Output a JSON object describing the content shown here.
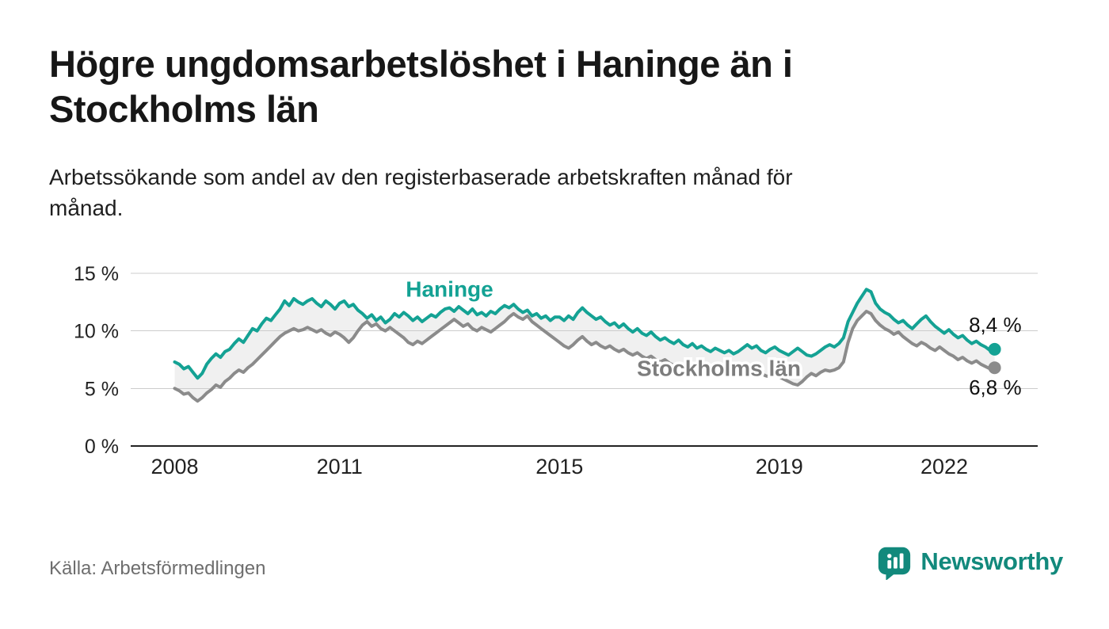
{
  "title": "Högre ungdomsarbetslöshet i Haninge än i\nStockholms län",
  "subtitle": "Arbetssökande som andel av den registerbaserade arbetskraften månad för\nmånad.",
  "source": "Källa: Arbetsförmedlingen",
  "brand": {
    "name": "Newsworthy",
    "color": "#12897C",
    "icon": "bar-chart-speech-bubble-icon"
  },
  "chart_data": {
    "type": "line",
    "title": "Högre ungdomsarbetslöshet i Haninge än i Stockholms län",
    "subtitle": "Arbetssökande som andel av den registerbaserade arbetskraften månad för månad.",
    "unit": "%",
    "frequency": "monthly",
    "start": "2008-01",
    "start_year": 2008,
    "end": "2022-12",
    "grid": true,
    "legend_position": "inline-labels",
    "band_fill": "#F0F0F0",
    "grid_color": "#CCCCCC",
    "axis_color": "#222222",
    "tick_text_color": "#222222",
    "end_label_color": "#111111",
    "ylim": [
      0,
      15
    ],
    "xlim_years": [
      2007.2,
      2023.7
    ],
    "y_ticks": [
      {
        "value": 0,
        "label": "0 %"
      },
      {
        "value": 5,
        "label": "5 %"
      },
      {
        "value": 10,
        "label": "10 %"
      },
      {
        "value": 15,
        "label": "15 %"
      }
    ],
    "x_ticks": [
      {
        "year": 2008,
        "label": "2008"
      },
      {
        "year": 2011,
        "label": "2011"
      },
      {
        "year": 2015,
        "label": "2015"
      },
      {
        "year": 2019,
        "label": "2019"
      },
      {
        "year": 2022,
        "label": "2022"
      }
    ],
    "series": [
      {
        "name": "Haninge",
        "color": "#14A294",
        "end_label": "8,4 %",
        "end_value": 8.4,
        "values": [
          7.3,
          7.1,
          6.7,
          6.9,
          6.4,
          5.9,
          6.3,
          7.1,
          7.6,
          8.0,
          7.7,
          8.2,
          8.4,
          8.9,
          9.3,
          9.0,
          9.6,
          10.2,
          10.0,
          10.6,
          11.1,
          10.9,
          11.4,
          11.9,
          12.6,
          12.2,
          12.8,
          12.5,
          12.3,
          12.6,
          12.8,
          12.4,
          12.1,
          12.6,
          12.3,
          11.9,
          12.4,
          12.6,
          12.1,
          12.3,
          11.8,
          11.5,
          11.1,
          11.4,
          10.9,
          11.2,
          10.7,
          11.0,
          11.5,
          11.2,
          11.6,
          11.3,
          10.9,
          11.2,
          10.8,
          11.1,
          11.4,
          11.2,
          11.6,
          11.9,
          12.0,
          11.7,
          12.1,
          11.8,
          11.5,
          11.9,
          11.4,
          11.6,
          11.3,
          11.7,
          11.5,
          11.9,
          12.2,
          12.0,
          12.3,
          11.9,
          11.6,
          11.8,
          11.3,
          11.5,
          11.1,
          11.3,
          10.9,
          11.2,
          11.2,
          10.9,
          11.3,
          11.0,
          11.6,
          12.0,
          11.6,
          11.3,
          11.0,
          11.2,
          10.8,
          10.5,
          10.7,
          10.3,
          10.6,
          10.2,
          9.9,
          10.2,
          9.8,
          9.6,
          9.9,
          9.5,
          9.2,
          9.4,
          9.1,
          8.9,
          9.2,
          8.8,
          8.6,
          8.9,
          8.5,
          8.7,
          8.4,
          8.2,
          8.5,
          8.3,
          8.1,
          8.3,
          8.0,
          8.2,
          8.5,
          8.8,
          8.5,
          8.7,
          8.3,
          8.1,
          8.4,
          8.6,
          8.3,
          8.1,
          7.9,
          8.2,
          8.5,
          8.2,
          7.9,
          7.8,
          8.0,
          8.3,
          8.6,
          8.8,
          8.6,
          8.9,
          9.4,
          10.8,
          11.6,
          12.4,
          13.0,
          13.6,
          13.4,
          12.4,
          11.9,
          11.6,
          11.4,
          11.0,
          10.7,
          10.9,
          10.5,
          10.2,
          10.6,
          11.0,
          11.3,
          10.8,
          10.4,
          10.1,
          9.8,
          10.1,
          9.7,
          9.4,
          9.6,
          9.2,
          8.9,
          9.1,
          8.8,
          8.6,
          8.3,
          8.4
        ]
      },
      {
        "name": "Stockholms län",
        "color": "#8B8B8B",
        "end_label": "6,8 %",
        "end_value": 6.8,
        "values": [
          5.0,
          4.8,
          4.5,
          4.6,
          4.2,
          3.9,
          4.2,
          4.6,
          4.9,
          5.3,
          5.1,
          5.6,
          5.9,
          6.3,
          6.6,
          6.4,
          6.8,
          7.1,
          7.5,
          7.9,
          8.3,
          8.7,
          9.1,
          9.5,
          9.8,
          10.0,
          10.2,
          10.0,
          10.1,
          10.3,
          10.1,
          9.9,
          10.1,
          9.8,
          9.6,
          9.9,
          9.7,
          9.4,
          9.0,
          9.4,
          10.0,
          10.5,
          10.8,
          10.4,
          10.6,
          10.2,
          10.0,
          10.3,
          10.0,
          9.7,
          9.4,
          9.0,
          8.8,
          9.1,
          8.9,
          9.2,
          9.5,
          9.8,
          10.1,
          10.4,
          10.7,
          11.0,
          10.7,
          10.4,
          10.6,
          10.2,
          10.0,
          10.3,
          10.1,
          9.9,
          10.2,
          10.5,
          10.8,
          11.2,
          11.5,
          11.2,
          11.0,
          11.3,
          10.8,
          10.5,
          10.2,
          9.9,
          9.6,
          9.3,
          9.0,
          8.7,
          8.5,
          8.8,
          9.2,
          9.5,
          9.1,
          8.8,
          9.0,
          8.7,
          8.5,
          8.7,
          8.4,
          8.2,
          8.4,
          8.1,
          7.9,
          8.1,
          7.8,
          7.6,
          7.8,
          7.5,
          7.3,
          7.5,
          7.2,
          7.0,
          7.2,
          6.9,
          6.8,
          7.0,
          6.7,
          6.6,
          6.8,
          6.5,
          6.4,
          6.6,
          6.4,
          6.3,
          6.5,
          6.3,
          6.2,
          6.4,
          6.2,
          6.1,
          6.3,
          6.1,
          6.0,
          6.2,
          6.0,
          5.8,
          5.6,
          5.4,
          5.3,
          5.6,
          6.0,
          6.3,
          6.1,
          6.4,
          6.6,
          6.5,
          6.6,
          6.8,
          7.3,
          9.0,
          10.2,
          10.9,
          11.3,
          11.7,
          11.5,
          10.9,
          10.5,
          10.2,
          10.0,
          9.7,
          9.9,
          9.5,
          9.2,
          8.9,
          8.7,
          9.0,
          8.8,
          8.5,
          8.3,
          8.6,
          8.3,
          8.0,
          7.8,
          7.5,
          7.7,
          7.4,
          7.2,
          7.4,
          7.1,
          6.9,
          6.7,
          6.8
        ]
      }
    ],
    "annotations": [
      {
        "text": "Haninge",
        "x_year": 2013.0,
        "y_value": 13.6,
        "color": "#14A294",
        "halo": true
      },
      {
        "text": "Stockholms län",
        "x_year": 2017.9,
        "y_value": 6.7,
        "color": "#7D7D7D",
        "halo": true
      }
    ]
  }
}
